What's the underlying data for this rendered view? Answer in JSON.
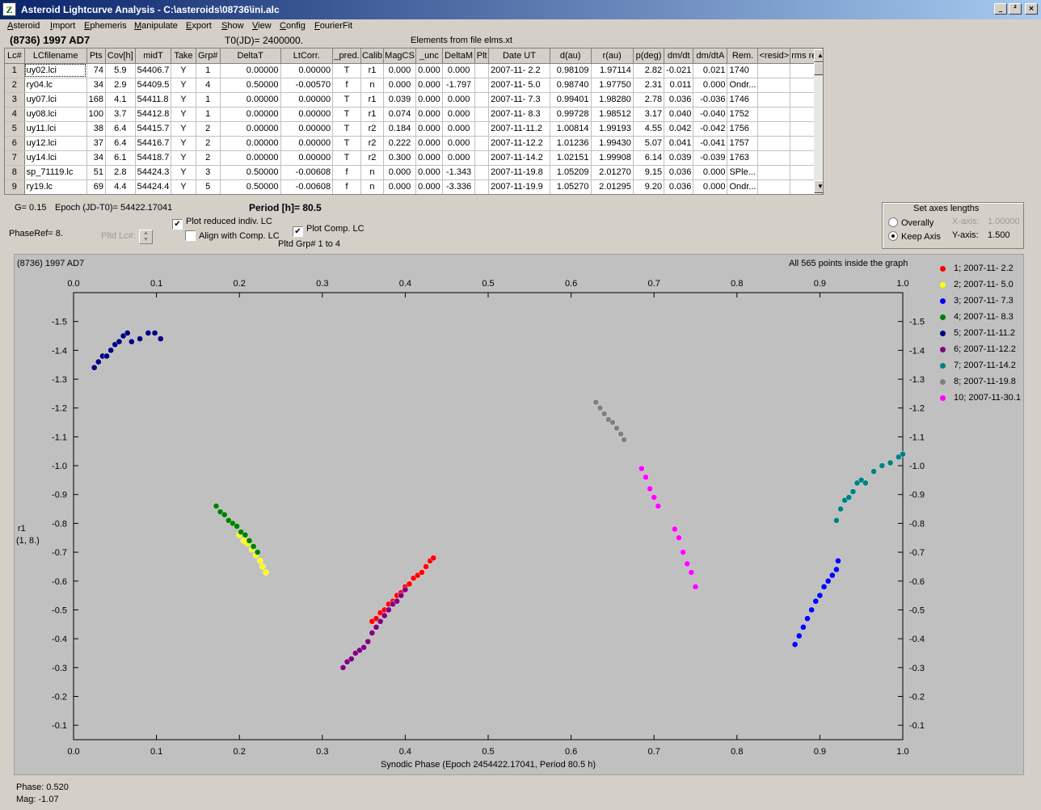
{
  "window": {
    "title": "Asteroid Lightcurve Analysis - C:\\asteroids\\08736\\ini.alc",
    "app_icon_glyph": "Z",
    "buttons": [
      "_",
      "²",
      "×"
    ]
  },
  "menu": [
    {
      "label": "Asteroid",
      "acc": "A",
      "rest": "steroid"
    },
    {
      "label": "Import",
      "acc": "I",
      "rest": "mport"
    },
    {
      "label": "Ephemeris",
      "acc": "E",
      "rest": "phemeris"
    },
    {
      "label": "Manipulate",
      "acc": "M",
      "rest": "anipulate"
    },
    {
      "label": "Export",
      "acc": "E",
      "rest": "xport"
    },
    {
      "label": "Show",
      "acc": "S",
      "rest": "how"
    },
    {
      "label": "View",
      "acc": "V",
      "rest": "iew"
    },
    {
      "label": "Config",
      "acc": "C",
      "rest": "onfig"
    },
    {
      "label": "FourierFit",
      "acc": "F",
      "rest": "ourierFit"
    }
  ],
  "header": {
    "asteroid": "(8736) 1997 AD7",
    "t0": "T0(JD)= 2400000.",
    "elements": "Elements from file elms.xt"
  },
  "table": {
    "columns": [
      "Lc#",
      "LCfilename",
      "Pts",
      "Cov[h]",
      "midT",
      "Take",
      "Grp#",
      "DeltaT",
      "LtCorr.",
      "_pred.",
      "Calib",
      "MagCS",
      "_unc",
      "DeltaM",
      "Plt",
      "Date UT",
      "d(au)",
      "r(au)",
      "p(deg)",
      "dm/dt",
      "dm/dtA",
      "Rem.",
      "<resid>",
      "rms res"
    ],
    "rows": [
      [
        "1",
        "uy02.lci",
        "74",
        "5.9",
        "54406.7",
        "Y",
        "1",
        "0.00000",
        "0.00000",
        "T",
        "r1",
        "0.000",
        "0.000",
        "0.000",
        "",
        "2007-11- 2.2",
        "0.98109",
        "1.97114",
        "2.82",
        "-0.021",
        "0.021",
        "1740",
        "",
        ""
      ],
      [
        "2",
        "ry04.lc",
        "34",
        "2.9",
        "54409.5",
        "Y",
        "4",
        "0.50000",
        "-0.00570",
        "f",
        "n",
        "0.000",
        "0.000",
        "-1.797",
        "",
        "2007-11- 5.0",
        "0.98740",
        "1.97750",
        "2.31",
        "0.011",
        "0.000",
        "Ondr...",
        "",
        ""
      ],
      [
        "3",
        "uy07.lci",
        "168",
        "4.1",
        "54411.8",
        "Y",
        "1",
        "0.00000",
        "0.00000",
        "T",
        "r1",
        "0.039",
        "0.000",
        "0.000",
        "",
        "2007-11- 7.3",
        "0.99401",
        "1.98280",
        "2.78",
        "0.036",
        "-0.036",
        "1746",
        "",
        ""
      ],
      [
        "4",
        "uy08.lci",
        "100",
        "3.7",
        "54412.8",
        "Y",
        "1",
        "0.00000",
        "0.00000",
        "T",
        "r1",
        "0.074",
        "0.000",
        "0.000",
        "",
        "2007-11- 8.3",
        "0.99728",
        "1.98512",
        "3.17",
        "0.040",
        "-0.040",
        "1752",
        "",
        ""
      ],
      [
        "5",
        "uy11.lci",
        "38",
        "6.4",
        "54415.7",
        "Y",
        "2",
        "0.00000",
        "0.00000",
        "T",
        "r2",
        "0.184",
        "0.000",
        "0.000",
        "",
        "2007-11-11.2",
        "1.00814",
        "1.99193",
        "4.55",
        "0.042",
        "-0.042",
        "1756",
        "",
        ""
      ],
      [
        "6",
        "uy12.lci",
        "37",
        "6.4",
        "54416.7",
        "Y",
        "2",
        "0.00000",
        "0.00000",
        "T",
        "r2",
        "0.222",
        "0.000",
        "0.000",
        "",
        "2007-11-12.2",
        "1.01236",
        "1.99430",
        "5.07",
        "0.041",
        "-0.041",
        "1757",
        "",
        ""
      ],
      [
        "7",
        "uy14.lci",
        "34",
        "6.1",
        "54418.7",
        "Y",
        "2",
        "0.00000",
        "0.00000",
        "T",
        "r2",
        "0.300",
        "0.000",
        "0.000",
        "",
        "2007-11-14.2",
        "1.02151",
        "1.99908",
        "6.14",
        "0.039",
        "-0.039",
        "1763",
        "",
        ""
      ],
      [
        "8",
        "sp_71119.lc",
        "51",
        "2.8",
        "54424.3",
        "Y",
        "3",
        "0.50000",
        "-0.00608",
        "f",
        "n",
        "0.000",
        "0.000",
        "-1.343",
        "",
        "2007-11-19.8",
        "1.05209",
        "2.01270",
        "9.15",
        "0.036",
        "0.000",
        "SPle...",
        "",
        ""
      ],
      [
        "9",
        "ry19.lc",
        "69",
        "4.4",
        "54424.4",
        "Y",
        "5",
        "0.50000",
        "-0.00608",
        "f",
        "n",
        "0.000",
        "0.000",
        "-3.336",
        "",
        "2007-11-19.9",
        "1.05270",
        "2.01295",
        "9.20",
        "0.036",
        "0.000",
        "Ondr...",
        "",
        ""
      ]
    ]
  },
  "controls": {
    "g_label": "G= 0.15",
    "epoch": "Epoch (JD-T0)= 54422.17041",
    "period": "Period [h]= 80.5",
    "phaseref": "PhaseRef= 8.",
    "pltd_lc": "Pltd Lc#:",
    "plot_reduced": "Plot reduced indiv. LC",
    "align_comp": "Align with Comp. LC",
    "plot_comp": "Plot Comp. LC",
    "pltd_grp": "Pltd Grp#  1   to   4",
    "axes_title": "Set axes lengths",
    "overally": "Overally",
    "keep_axis": "Keep Axis",
    "xaxis_label": "X-axis:",
    "xaxis_value": "1.00000",
    "yaxis_label": "Y-axis:",
    "yaxis_value": "1.500"
  },
  "status": {
    "phase": "Phase:  0.520",
    "mag": "Mag:    -1.07"
  },
  "legend": [
    {
      "label": "1; 2007-11- 2.2",
      "color": "#ff0000"
    },
    {
      "label": "2; 2007-11- 5.0",
      "color": "#ffff00"
    },
    {
      "label": "3; 2007-11- 7.3",
      "color": "#0000ff"
    },
    {
      "label": "4; 2007-11- 8.3",
      "color": "#008000"
    },
    {
      "label": "5; 2007-11-11.2",
      "color": "#000080"
    },
    {
      "label": "6; 2007-11-12.2",
      "color": "#800080"
    },
    {
      "label": "7; 2007-11-14.2",
      "color": "#008080"
    },
    {
      "label": "8; 2007-11-19.8",
      "color": "#808080"
    },
    {
      "label": "10; 2007-11-30.1",
      "color": "#ff00ff"
    }
  ],
  "chart_data": {
    "type": "scatter",
    "title": "(8736) 1997 AD7",
    "annotation": "All 565 points inside the graph",
    "xlabel": "Synodic Phase (Epoch 2454422.17041, Period 80.5 h)",
    "ylabel": "r1",
    "ylabel_sub": "(1, 8.)",
    "xlim": [
      0,
      1
    ],
    "ylim": [
      -1.6,
      -0.05
    ],
    "y_inverted": true,
    "x_ticks": [
      0.0,
      0.1,
      0.2,
      0.3,
      0.4,
      0.5,
      0.6,
      0.7,
      0.8,
      0.9,
      1.0
    ],
    "x_tick_labels": [
      "0.0",
      "0.1",
      "0.2",
      "0.3",
      "0.4",
      "0.5",
      "0.6",
      "0.7",
      "0.8",
      "0.9",
      "1.0"
    ],
    "y_ticks": [
      -1.5,
      -1.4,
      -1.3,
      -1.2,
      -1.1,
      -1.0,
      -0.9,
      -0.8,
      -0.7,
      -0.6,
      -0.5,
      -0.4,
      -0.3,
      -0.2,
      -0.1
    ],
    "y_tick_labels": [
      "-1.5",
      "-1.4",
      "-1.3",
      "-1.2",
      "-1.1",
      "-1.0",
      "-0.9",
      "-0.8",
      "-0.7",
      "-0.6",
      "-0.5",
      "-0.4",
      "-0.3",
      "-0.2",
      "-0.1"
    ],
    "grid": false,
    "legend_position": "right",
    "series": [
      {
        "name": "1; 2007-11- 2.2",
        "color": "#ff0000",
        "x": [
          0.36,
          0.365,
          0.37,
          0.375,
          0.38,
          0.385,
          0.39,
          0.395,
          0.4,
          0.405,
          0.41,
          0.415,
          0.42,
          0.425,
          0.43,
          0.434
        ],
        "y": [
          -0.46,
          -0.47,
          -0.49,
          -0.5,
          -0.52,
          -0.53,
          -0.55,
          -0.56,
          -0.58,
          -0.59,
          -0.61,
          -0.62,
          -0.63,
          -0.65,
          -0.67,
          -0.68
        ]
      },
      {
        "name": "2; 2007-11- 5.0",
        "color": "#ffff00",
        "x": [
          0.2,
          0.205,
          0.21,
          0.215,
          0.22,
          0.225,
          0.228,
          0.232
        ],
        "y": [
          -0.76,
          -0.74,
          -0.73,
          -0.71,
          -0.69,
          -0.67,
          -0.65,
          -0.63
        ]
      },
      {
        "name": "3; 2007-11- 7.3",
        "color": "#0000ff",
        "x": [
          0.87,
          0.875,
          0.88,
          0.885,
          0.89,
          0.895,
          0.9,
          0.905,
          0.91,
          0.915,
          0.92,
          0.922
        ],
        "y": [
          -0.38,
          -0.41,
          -0.44,
          -0.47,
          -0.5,
          -0.53,
          -0.55,
          -0.58,
          -0.6,
          -0.62,
          -0.64,
          -0.67
        ]
      },
      {
        "name": "4; 2007-11- 8.3",
        "color": "#008000",
        "x": [
          0.172,
          0.177,
          0.182,
          0.187,
          0.192,
          0.197,
          0.202,
          0.207,
          0.212,
          0.217,
          0.222
        ],
        "y": [
          -0.86,
          -0.84,
          -0.83,
          -0.81,
          -0.8,
          -0.79,
          -0.77,
          -0.76,
          -0.74,
          -0.72,
          -0.7
        ]
      },
      {
        "name": "5; 2007-11-11.2",
        "color": "#000080",
        "x": [
          0.025,
          0.03,
          0.035,
          0.04,
          0.045,
          0.05,
          0.055,
          0.06,
          0.065,
          0.07,
          0.08,
          0.09,
          0.098,
          0.105
        ],
        "y": [
          -1.34,
          -1.36,
          -1.38,
          -1.38,
          -1.4,
          -1.42,
          -1.43,
          -1.45,
          -1.46,
          -1.43,
          -1.44,
          -1.46,
          -1.46,
          -1.44
        ]
      },
      {
        "name": "6; 2007-11-12.2",
        "color": "#800080",
        "x": [
          0.325,
          0.33,
          0.335,
          0.34,
          0.345,
          0.35,
          0.355,
          0.36,
          0.365,
          0.37,
          0.375,
          0.38,
          0.385,
          0.39,
          0.395,
          0.4
        ],
        "y": [
          -0.3,
          -0.32,
          -0.33,
          -0.35,
          -0.36,
          -0.37,
          -0.39,
          -0.42,
          -0.44,
          -0.46,
          -0.48,
          -0.5,
          -0.52,
          -0.53,
          -0.55,
          -0.57
        ]
      },
      {
        "name": "7; 2007-11-14.2",
        "color": "#008080",
        "x": [
          0.92,
          0.925,
          0.93,
          0.935,
          0.94,
          0.945,
          0.95,
          0.955,
          0.965,
          0.975,
          0.985,
          0.995,
          1.0
        ],
        "y": [
          -0.81,
          -0.85,
          -0.88,
          -0.89,
          -0.91,
          -0.94,
          -0.95,
          -0.94,
          -0.98,
          -1.0,
          -1.01,
          -1.03,
          -1.04
        ]
      },
      {
        "name": "8; 2007-11-19.8",
        "color": "#808080",
        "x": [
          0.63,
          0.635,
          0.64,
          0.645,
          0.65,
          0.655,
          0.66,
          0.664
        ],
        "y": [
          -1.22,
          -1.2,
          -1.18,
          -1.16,
          -1.15,
          -1.13,
          -1.11,
          -1.09
        ]
      },
      {
        "name": "10; 2007-11-30.1",
        "color": "#ff00ff",
        "x": [
          0.685,
          0.69,
          0.695,
          0.7,
          0.705,
          0.725,
          0.73,
          0.735,
          0.74,
          0.745,
          0.75
        ],
        "y": [
          -0.99,
          -0.96,
          -0.92,
          -0.89,
          -0.86,
          -0.78,
          -0.75,
          -0.7,
          -0.66,
          -0.63,
          -0.58
        ]
      }
    ]
  }
}
